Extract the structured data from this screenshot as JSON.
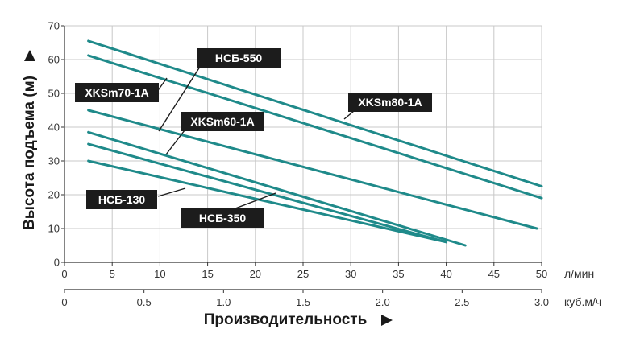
{
  "chart_data": {
    "type": "line",
    "ylabel": "Высота подъема (м)",
    "xlabel": "Производительность",
    "x_unit": "л/мин",
    "x2_unit": "куб.м/ч",
    "xlim": [
      0,
      50
    ],
    "ylim": [
      0,
      70
    ],
    "x_ticks": [
      "0",
      "5",
      "10",
      "15",
      "20",
      "25",
      "30",
      "35",
      "40",
      "45",
      "50"
    ],
    "x2_ticks": [
      "0",
      "0.5",
      "1.0",
      "1.5",
      "2.0",
      "2.5",
      "3.0"
    ],
    "y_ticks": [
      "0",
      "10",
      "20",
      "30",
      "40",
      "50",
      "60",
      "70"
    ],
    "grid": true,
    "series": [
      {
        "name": "XKSm80-1A",
        "x": [
          2.5,
          50
        ],
        "y": [
          65.5,
          22.5
        ]
      },
      {
        "name": "XKSm70-1A",
        "x": [
          2.5,
          50
        ],
        "y": [
          61.2,
          19
        ]
      },
      {
        "name": "XKSm60-1A",
        "x": [
          2.5,
          49.5
        ],
        "y": [
          45,
          10
        ]
      },
      {
        "name": "НСБ-550",
        "x": [
          2.5,
          42
        ],
        "y": [
          38.5,
          5
        ]
      },
      {
        "name": "НСБ-350",
        "x": [
          2.5,
          40
        ],
        "y": [
          35,
          6
        ]
      },
      {
        "name": "НСБ-130",
        "x": [
          2.5,
          40
        ],
        "y": [
          30,
          6
        ]
      }
    ],
    "line_color": "#1f8a8a",
    "label_bg": "#1c1c1c",
    "label_fg": "#ffffff"
  }
}
